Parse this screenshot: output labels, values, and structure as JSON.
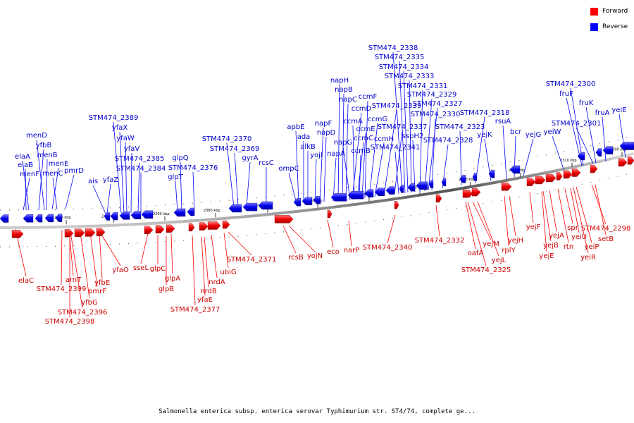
{
  "legend": {
    "forward": {
      "label": "Forward",
      "color": "#ff0000"
    },
    "reverse": {
      "label": "Reverse",
      "color": "#0000ff"
    }
  },
  "caption": "Salmonella enterica subsp. enterica serovar Typhimurium str. ST4/74, complete ge...",
  "ticks": [
    "2410 kbp",
    "2400 kbp",
    "2390 kbp",
    "2380 kbp",
    "2370 kbp",
    "2360 kbp",
    "2350 kbp",
    "2340 kbp",
    "2330 kbp",
    "2320 kbp",
    "2310 kbp",
    "2300 kbp"
  ],
  "reverse_genes": [
    "menF",
    "elaB",
    "elaA",
    "yfbB",
    "menD",
    "menB",
    "menE",
    "menC",
    "pmrD",
    "ais",
    "yfaZ",
    "STM474_2389",
    "yfaX",
    "yfaW",
    "yfaV",
    "STM474_2385",
    "STM474_2384",
    "glpT",
    "glpQ",
    "STM474_2376",
    "STM474_2370",
    "STM474_2369",
    "gyrA",
    "rcsC",
    "ompC",
    "apbE",
    "ada",
    "alkB",
    "yojI",
    "napF",
    "napD",
    "napA",
    "napH",
    "napB",
    "napC",
    "napG",
    "ccmD",
    "ccmA",
    "ccmC",
    "ccmB",
    "ccmE",
    "ccmF",
    "ccmG",
    "ccmH",
    "STM474_2339",
    "STM474_2337",
    "STM474_2341",
    "STM474_2338",
    "STM474_2335",
    "STM474_2334",
    "STM474_2333",
    "sspH2",
    "STM474_2331",
    "STM474_2329",
    "STM474_2327",
    "STM474_2330",
    "STM474_2328",
    "STM474_2323",
    "STM474_2318",
    "yejK",
    "rsuA",
    "bcr",
    "yejG",
    "STM474_2300",
    "yeiW",
    "fruF",
    "STM474_2301",
    "fruK",
    "fruA",
    "yeiE"
  ],
  "forward_genes": [
    "elaC",
    "STM474_2399",
    "arnT",
    "STM474_2396",
    "STM474_2398",
    "yfbG",
    "pmrF",
    "yfbE",
    "yfaO",
    "sseL",
    "glpC",
    "glpB",
    "glpA",
    "STM474_2377",
    "yfaE",
    "nrdB",
    "nrdA",
    "ubiG",
    "STM474_2371",
    "rcsB",
    "yojN",
    "eco",
    "narP",
    "STM474_2340",
    "STM474_2332",
    "oafA",
    "STM474_2325",
    "yejM",
    "yejL",
    "rplY",
    "yejH",
    "yejF",
    "yejE",
    "yejB",
    "yejA",
    "rtn",
    "spr",
    "yeiU",
    "yeiP",
    "yeiR",
    "STM474_2298",
    "setB"
  ]
}
